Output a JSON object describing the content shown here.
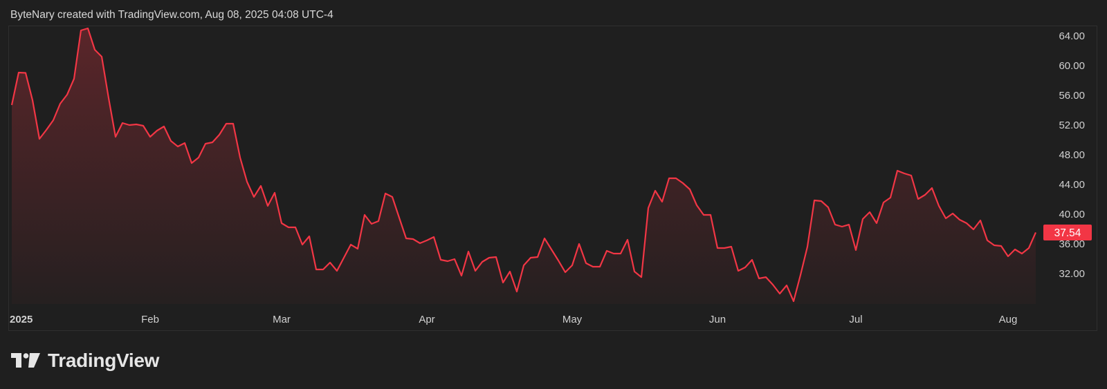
{
  "header": {
    "title": "ByteNary created with TradingView.com, Aug 08, 2025 04:08 UTC-4"
  },
  "branding": {
    "logo_text": "TradingView",
    "logo_icon": "tradingview-logo-icon"
  },
  "colors": {
    "background": "#1f1f1f",
    "line": "#f23645",
    "frame": "#2f2f2f",
    "text": "#d1d1d1",
    "last_price_badge": "#f23645"
  },
  "chart_data": {
    "type": "area",
    "title": "",
    "xlabel": "",
    "ylabel": "",
    "ylim": [
      28,
      65.5
    ],
    "yticks": [
      64,
      60,
      56,
      52,
      48,
      44,
      40,
      36,
      32
    ],
    "ytick_labels": [
      "64.00",
      "60.00",
      "56.00",
      "52.00",
      "48.00",
      "44.00",
      "40.00",
      "36.00",
      "32.00"
    ],
    "y_axis_position": "right",
    "grid": false,
    "xticks": [
      {
        "date": "2025-01-02",
        "label": "2025"
      },
      {
        "date": "2025-02-03",
        "label": "Feb"
      },
      {
        "date": "2025-03-03",
        "label": "Mar"
      },
      {
        "date": "2025-04-01",
        "label": "Apr"
      },
      {
        "date": "2025-05-01",
        "label": "May"
      },
      {
        "date": "2025-06-02",
        "label": "Jun"
      },
      {
        "date": "2025-07-01",
        "label": "Jul"
      },
      {
        "date": "2025-08-01",
        "label": "Aug"
      }
    ],
    "last_value_label": "37.54",
    "x": [
      "2025-01-02",
      "2025-01-03",
      "2025-01-06",
      "2025-01-07",
      "2025-01-08",
      "2025-01-10",
      "2025-01-13",
      "2025-01-14",
      "2025-01-15",
      "2025-01-16",
      "2025-01-17",
      "2025-01-21",
      "2025-01-22",
      "2025-01-23",
      "2025-01-24",
      "2025-01-27",
      "2025-01-28",
      "2025-01-29",
      "2025-01-30",
      "2025-01-31",
      "2025-02-03",
      "2025-02-04",
      "2025-02-05",
      "2025-02-06",
      "2025-02-07",
      "2025-02-10",
      "2025-02-11",
      "2025-02-12",
      "2025-02-13",
      "2025-02-14",
      "2025-02-18",
      "2025-02-19",
      "2025-02-20",
      "2025-02-21",
      "2025-02-24",
      "2025-02-25",
      "2025-02-26",
      "2025-02-27",
      "2025-02-28",
      "2025-03-03",
      "2025-03-04",
      "2025-03-05",
      "2025-03-06",
      "2025-03-07",
      "2025-03-10",
      "2025-03-11",
      "2025-03-12",
      "2025-03-13",
      "2025-03-14",
      "2025-03-17",
      "2025-03-18",
      "2025-03-19",
      "2025-03-20",
      "2025-03-21",
      "2025-03-24",
      "2025-03-25",
      "2025-03-26",
      "2025-03-27",
      "2025-03-28",
      "2025-03-31",
      "2025-04-01",
      "2025-04-02",
      "2025-04-03",
      "2025-04-04",
      "2025-04-07",
      "2025-04-08",
      "2025-04-09",
      "2025-04-10",
      "2025-04-11",
      "2025-04-14",
      "2025-04-15",
      "2025-04-16",
      "2025-04-17",
      "2025-04-21",
      "2025-04-22",
      "2025-04-23",
      "2025-04-24",
      "2025-04-25",
      "2025-04-28",
      "2025-04-29",
      "2025-04-30",
      "2025-05-01",
      "2025-05-02",
      "2025-05-05",
      "2025-05-06",
      "2025-05-07",
      "2025-05-08",
      "2025-05-09",
      "2025-05-12",
      "2025-05-13",
      "2025-05-14",
      "2025-05-15",
      "2025-05-16",
      "2025-05-19",
      "2025-05-20",
      "2025-05-21",
      "2025-05-22",
      "2025-05-23",
      "2025-05-27",
      "2025-05-28",
      "2025-05-29",
      "2025-05-30",
      "2025-06-02",
      "2025-06-03",
      "2025-06-04",
      "2025-06-05",
      "2025-06-06",
      "2025-06-09",
      "2025-06-10",
      "2025-06-11",
      "2025-06-12",
      "2025-06-13",
      "2025-06-16",
      "2025-06-17",
      "2025-06-18",
      "2025-06-20",
      "2025-06-23",
      "2025-06-24",
      "2025-06-25",
      "2025-06-26",
      "2025-06-27",
      "2025-06-30",
      "2025-07-01",
      "2025-07-02",
      "2025-07-03",
      "2025-07-07",
      "2025-07-08",
      "2025-07-09",
      "2025-07-10",
      "2025-07-11",
      "2025-07-14",
      "2025-07-15",
      "2025-07-16",
      "2025-07-17",
      "2025-07-18",
      "2025-07-21",
      "2025-07-22",
      "2025-07-23",
      "2025-07-24",
      "2025-07-25",
      "2025-07-28",
      "2025-07-29",
      "2025-07-30",
      "2025-07-31",
      "2025-08-01",
      "2025-08-04",
      "2025-08-05",
      "2025-08-06",
      "2025-08-07"
    ],
    "y": [
      54.7,
      59.07,
      59.02,
      55.35,
      50.14,
      51.35,
      52.65,
      54.88,
      56.09,
      58.23,
      64.74,
      65.02,
      62.14,
      61.21,
      55.63,
      50.42,
      52.28,
      52.0,
      52.09,
      51.91,
      50.42,
      51.26,
      51.81,
      49.86,
      49.12,
      49.58,
      46.88,
      47.63,
      49.49,
      49.67,
      50.7,
      52.19,
      52.19,
      47.63,
      44.37,
      42.33,
      43.81,
      41.12,
      42.88,
      38.79,
      38.23,
      38.23,
      35.91,
      37.02,
      32.56,
      32.56,
      33.49,
      32.37,
      34.14,
      35.91,
      35.35,
      39.91,
      38.7,
      39.07,
      42.79,
      42.33,
      39.53,
      36.74,
      36.65,
      36.09,
      36.47,
      36.93,
      33.86,
      33.67,
      33.95,
      31.72,
      34.98,
      32.37,
      33.58,
      34.14,
      34.23,
      30.79,
      32.28,
      29.58,
      33.12,
      34.14,
      34.23,
      36.74,
      35.26,
      33.77,
      32.19,
      33.12,
      36.0,
      33.4,
      32.93,
      32.93,
      35.07,
      34.7,
      34.7,
      36.56,
      32.28,
      31.53,
      40.84,
      43.16,
      41.67,
      44.84,
      44.84,
      44.19,
      43.35,
      41.21,
      39.91,
      39.91,
      35.44,
      35.44,
      35.63,
      32.37,
      32.84,
      33.86,
      31.35,
      31.53,
      30.51,
      29.3,
      30.42,
      28.28,
      31.81,
      35.63,
      41.86,
      41.77,
      40.93,
      38.6,
      38.33,
      38.6,
      35.16,
      39.35,
      40.28,
      38.79,
      41.58,
      42.23,
      45.86,
      45.49,
      45.21,
      42.05,
      42.6,
      43.53,
      41.12,
      39.44,
      40.09,
      39.26,
      38.79,
      37.95,
      39.16,
      36.47,
      35.81,
      35.72,
      34.33,
      35.26,
      34.7,
      35.44,
      37.54
    ]
  }
}
